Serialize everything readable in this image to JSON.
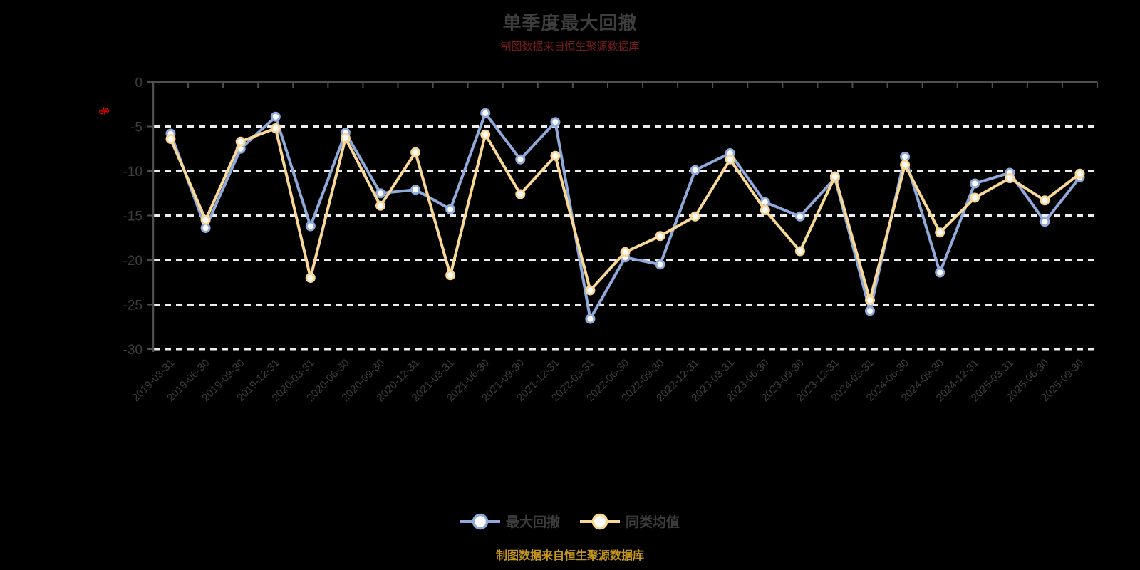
{
  "chart": {
    "source_note": "制图数据来自恒生聚源数据库",
    "title_color": "#3d3d3d",
    "source_note_top_color": "#7a1c1c",
    "source_note_bottom_color": "#c4961a",
    "unit_label_color": "#f20000",
    "legend_text_color": "#3d3d3d"
  },
  "chart_data": {
    "type": "line",
    "title": "单季度最大回撤",
    "ylabel": "%",
    "ylim": [
      -30,
      0
    ],
    "y_ticks": [
      0,
      -5,
      -10,
      -15,
      -20,
      -25,
      -30
    ],
    "x_label_rotation": 45,
    "grid": "dashed-white",
    "legend_position": "bottom",
    "categories": [
      "2019-03-31",
      "2019-06-30",
      "2019-09-30",
      "2019-12-31",
      "2020-03-31",
      "2020-06-30",
      "2020-09-30",
      "2020-12-31",
      "2021-03-31",
      "2021-06-30",
      "2021-09-30",
      "2021-12-31",
      "2022-03-31",
      "2022-06-30",
      "2022-09-30",
      "2022-12-31",
      "2023-03-31",
      "2023-06-30",
      "2023-09-30",
      "2023-12-31",
      "2024-03-31",
      "2024-06-30",
      "2024-09-30",
      "2024-12-31",
      "2025-03-31",
      "2025-06-30",
      "2025-09-30"
    ],
    "series": [
      {
        "id": "max-drawdown",
        "name": "最大回撤",
        "color": "#8fa9db",
        "values": [
          -5.8,
          -16.4,
          -7.5,
          -3.9,
          -16.2,
          -5.7,
          -12.5,
          -12.1,
          -14.3,
          -3.5,
          -8.7,
          -4.5,
          -26.6,
          -19.7,
          -20.5,
          -9.9,
          -8.0,
          -13.5,
          -15.1,
          -10.8,
          -25.7,
          -8.4,
          -21.4,
          -11.4,
          -10.2,
          -15.7,
          -10.7
        ]
      },
      {
        "id": "category-average",
        "name": "同类均值",
        "color": "#f9d897",
        "values": [
          -6.4,
          -15.5,
          -6.7,
          -5.2,
          -22.0,
          -6.3,
          -13.9,
          -7.9,
          -21.7,
          -5.9,
          -12.6,
          -8.3,
          -23.4,
          -19.1,
          -17.3,
          -15.1,
          -8.7,
          -14.4,
          -19.0,
          -10.6,
          -24.5,
          -9.3,
          -16.9,
          -13.0,
          -10.8,
          -13.3,
          -10.3
        ]
      }
    ],
    "style": {
      "grid_color": "#ededed",
      "axis_color": "#4f4f4f",
      "tick_label_color": "#3d3d3d",
      "marker_fill": "#ffffff",
      "background": "#000000"
    }
  }
}
